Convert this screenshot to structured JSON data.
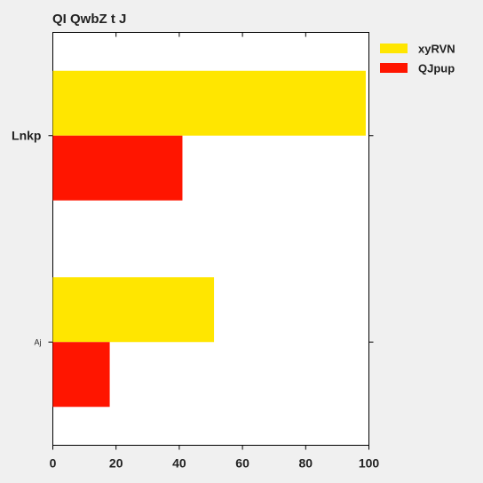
{
  "chart_data": {
    "type": "bar",
    "orientation": "horizontal",
    "title": "QI QwbZ t J",
    "xlabel": "",
    "ylabel": "",
    "xlim": [
      0,
      100
    ],
    "xticks": [
      0,
      20,
      40,
      60,
      80,
      100
    ],
    "categories": [
      "Lnkp",
      "Aj"
    ],
    "series": [
      {
        "name": "xyRVN",
        "color": "#ffe600",
        "values": [
          99,
          51
        ]
      },
      {
        "name": "QJpup",
        "color": "#ff1500",
        "values": [
          41,
          18
        ]
      }
    ],
    "legend": {
      "position": "right-top"
    },
    "grid": false,
    "plot_background": "#ffffff",
    "page_background": "#f0f0f0"
  }
}
